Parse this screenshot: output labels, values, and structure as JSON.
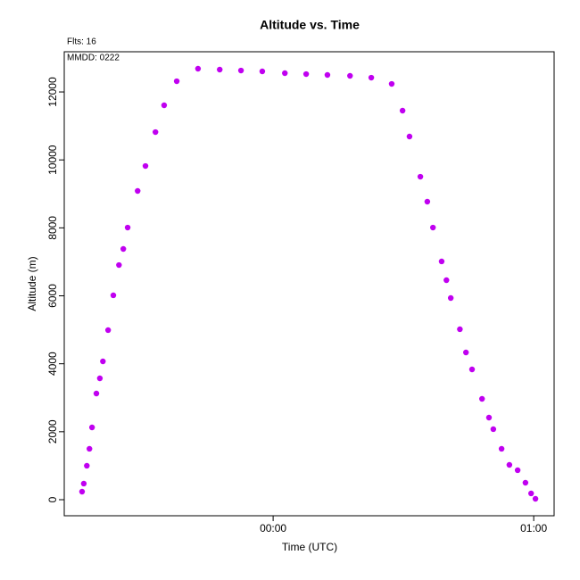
{
  "chart_data": {
    "type": "scatter",
    "title": "Altitude  vs. Time",
    "annotations": [
      "Flts: 16",
      "MMDD: 0222"
    ],
    "x_label": "Time (UTC)",
    "y_label": "Altitude (m)",
    "color": "#c000f0",
    "xlim": [
      -48.1,
      64.7
    ],
    "xticks": [
      {
        "value": 0,
        "label": "00:00"
      },
      {
        "value": 60,
        "label": "01:00"
      }
    ],
    "ylim": [
      -473,
      13183
    ],
    "yticks": [
      0,
      2000,
      4000,
      6000,
      8000,
      10000,
      12000
    ],
    "x": [
      -44.0,
      -43.6,
      -42.9,
      -42.3,
      -41.7,
      -40.7,
      -39.9,
      -39.2,
      -38.0,
      -36.8,
      -35.5,
      -34.5,
      -33.5,
      -31.2,
      -29.4,
      -27.1,
      -25.1,
      -22.2,
      -17.3,
      -12.3,
      -7.4,
      -2.5,
      2.7,
      7.6,
      12.5,
      17.7,
      22.6,
      27.3,
      29.8,
      31.4,
      33.9,
      35.5,
      36.8,
      38.8,
      39.9,
      40.9,
      43.0,
      44.4,
      45.8,
      48.1,
      49.7,
      50.7,
      52.6,
      54.4,
      56.3,
      58.1,
      59.4,
      60.4
    ],
    "values": [
      236,
      473,
      998,
      1497,
      2127,
      3125,
      3571,
      4070,
      4990,
      6014,
      6906,
      7379,
      8009,
      9086,
      9821,
      10819,
      11607,
      12316,
      12684,
      12658,
      12631,
      12605,
      12553,
      12526,
      12500,
      12474,
      12421,
      12237,
      11450,
      10688,
      9506,
      8771,
      8009,
      7012,
      6460,
      5935,
      5016,
      4333,
      3834,
      2967,
      2416,
      2075,
      1497,
      1024,
      867,
      499,
      184,
      26
    ]
  }
}
